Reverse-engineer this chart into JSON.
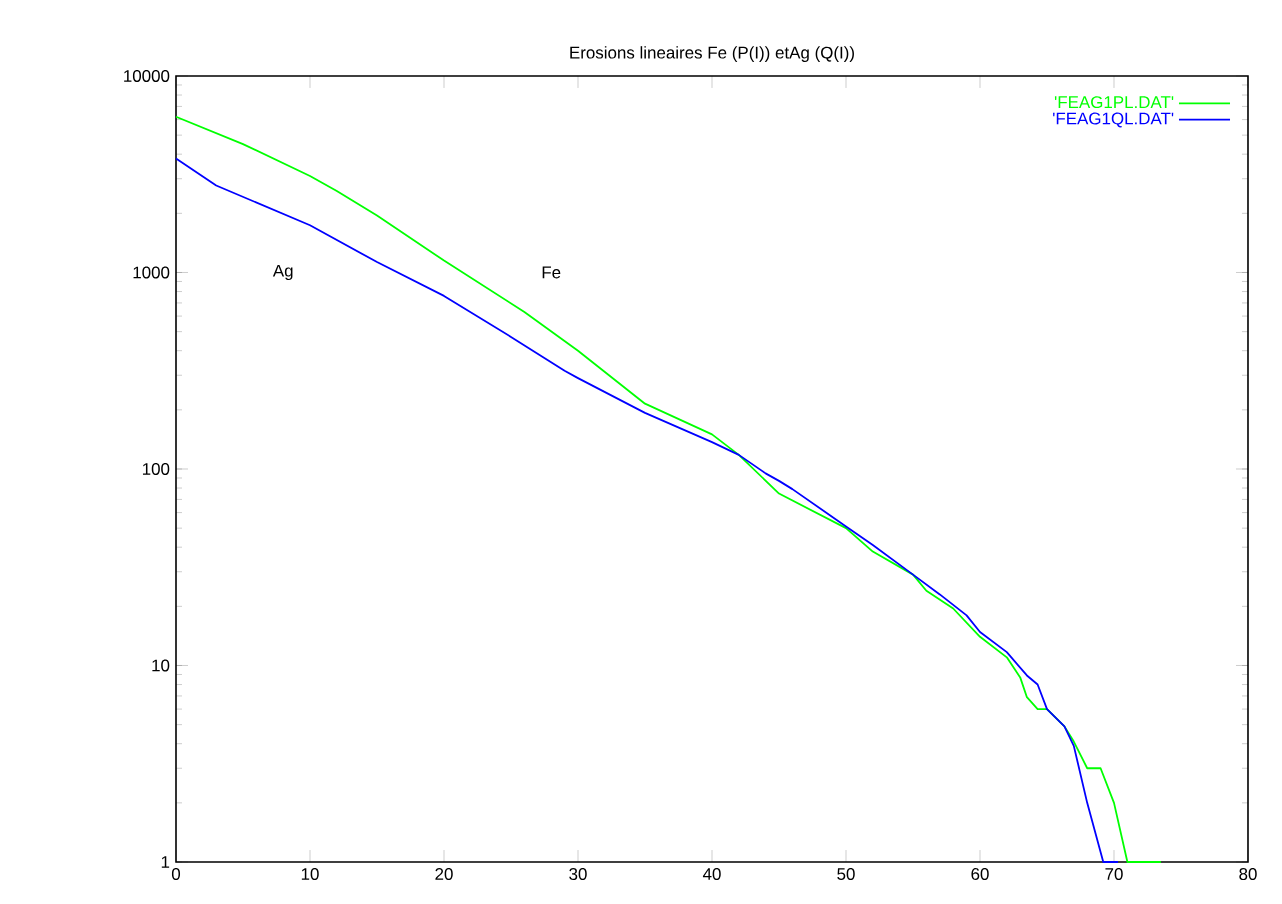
{
  "chart_data": {
    "type": "line",
    "title": "Erosions lineaires Fe (P(I)) etAg (Q(I))",
    "log": "y",
    "grid": false,
    "legend": "top right",
    "xlim": [
      0,
      80
    ],
    "xticks": [
      0,
      10,
      20,
      30,
      40,
      50,
      60,
      70,
      80
    ],
    "ylim": [
      1,
      10000
    ],
    "yticks": [
      1,
      10,
      100,
      1000,
      10000
    ],
    "annotations": [
      "Ag",
      "Fe"
    ],
    "series": [
      {
        "name": "'FEAG1PL.DAT'",
        "color": "#00ff00",
        "x": [
          0,
          5,
          10,
          12,
          15,
          20,
          26,
          30,
          35,
          40,
          41,
          42,
          45,
          50,
          52,
          55,
          56,
          58,
          60,
          62,
          63,
          63.5,
          64.3,
          65,
          66.3,
          67,
          68,
          69,
          70,
          71,
          73.5
        ],
        "values": [
          6200,
          4500,
          3100,
          2600,
          1950,
          1150,
          630,
          400,
          215,
          150,
          133,
          118,
          75,
          50,
          38,
          29,
          24,
          19.5,
          14,
          11,
          8.7,
          6.9,
          6,
          6,
          4.9,
          4.1,
          3,
          3,
          2,
          1,
          1
        ]
      },
      {
        "name": "'FEAG1QL.DAT'",
        "color": "#0000ff",
        "x": [
          0,
          3,
          10,
          15,
          20,
          25,
          29,
          30,
          35,
          40,
          42,
          44,
          45,
          46,
          50,
          52,
          55,
          57,
          59,
          60,
          62,
          63.5,
          64.3,
          65,
          66.3,
          67,
          68,
          69.2,
          70.3
        ],
        "values": [
          3800,
          2770,
          1740,
          1130,
          760,
          470,
          316,
          290,
          193,
          137,
          118,
          95,
          87,
          79,
          51,
          41,
          29,
          23,
          18,
          14.8,
          11.7,
          8.9,
          8,
          6,
          4.9,
          3.9,
          2,
          1,
          1
        ]
      }
    ]
  }
}
